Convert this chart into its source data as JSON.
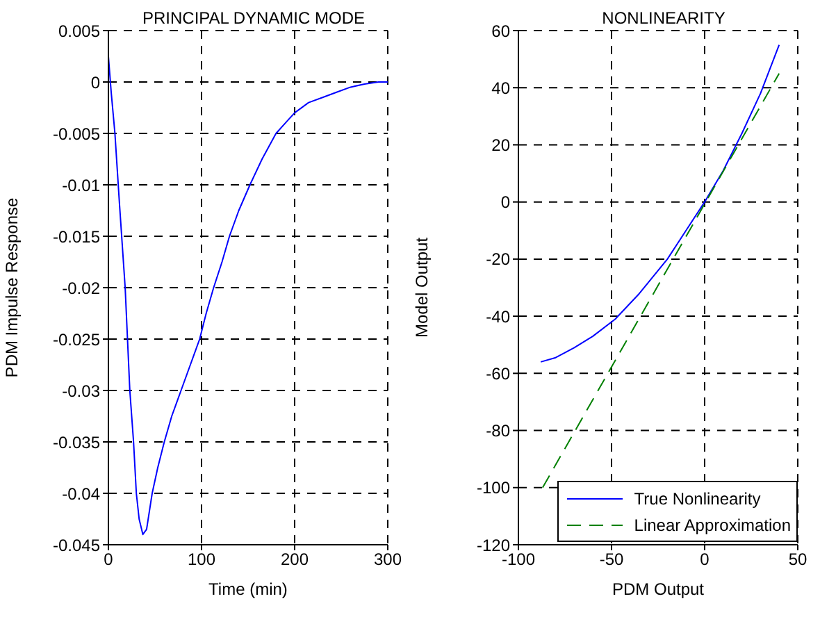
{
  "chart_data": [
    {
      "type": "line",
      "title": "PRINCIPAL DYNAMIC MODE",
      "xlabel": "Time (min)",
      "ylabel": "PDM Impulse Response",
      "xlim": [
        0,
        300
      ],
      "ylim": [
        -0.045,
        0.005
      ],
      "xticks": [
        0,
        100,
        200,
        300
      ],
      "yticks": [
        -0.045,
        -0.04,
        -0.035,
        -0.03,
        -0.025,
        -0.02,
        -0.015,
        -0.01,
        -0.005,
        0,
        0.005
      ],
      "grid": true,
      "legend": false,
      "series": [
        {
          "color": "#0000ff",
          "line_style": "solid",
          "x": [
            0,
            3,
            7,
            12,
            18,
            23,
            27,
            30,
            33,
            37,
            41,
            47,
            53,
            60,
            68,
            78,
            88,
            98,
            105,
            113,
            122,
            130,
            140,
            152,
            165,
            180,
            190,
            200,
            215,
            230,
            245,
            260,
            275,
            290,
            300
          ],
          "values": [
            0.0025,
            -0.001,
            -0.005,
            -0.012,
            -0.02,
            -0.03,
            -0.035,
            -0.04,
            -0.0425,
            -0.044,
            -0.0435,
            -0.04,
            -0.0375,
            -0.035,
            -0.0325,
            -0.03,
            -0.0275,
            -0.025,
            -0.0225,
            -0.02,
            -0.0175,
            -0.015,
            -0.0125,
            -0.01,
            -0.0075,
            -0.005,
            -0.004,
            -0.003,
            -0.002,
            -0.0015,
            -0.001,
            -0.0005,
            -0.0002,
            0,
            0
          ]
        }
      ]
    },
    {
      "type": "line",
      "title": "NONLINEARITY",
      "xlabel": "PDM Output",
      "ylabel": "Model Output",
      "xlim": [
        -100,
        50
      ],
      "ylim": [
        -120,
        60
      ],
      "xticks": [
        -100,
        -50,
        0,
        50
      ],
      "yticks": [
        -120,
        -100,
        -80,
        -60,
        -40,
        -20,
        0,
        20,
        40,
        60
      ],
      "grid": true,
      "legend": "bottom right",
      "series": [
        {
          "name": "True Nonlinearity",
          "color": "#0000ff",
          "line_style": "solid",
          "x": [
            -88,
            -80,
            -70,
            -60,
            -48,
            -35,
            -20,
            -10,
            0,
            10,
            20,
            30,
            40
          ],
          "values": [
            -56,
            -54.5,
            -51,
            -47,
            -41,
            -32,
            -20,
            -10,
            0,
            11,
            24,
            38,
            55
          ]
        },
        {
          "name": "Linear Approximation",
          "color": "#008000",
          "line_style": "dashed",
          "x": [
            -87,
            40
          ],
          "values": [
            -100,
            45
          ]
        }
      ]
    }
  ]
}
